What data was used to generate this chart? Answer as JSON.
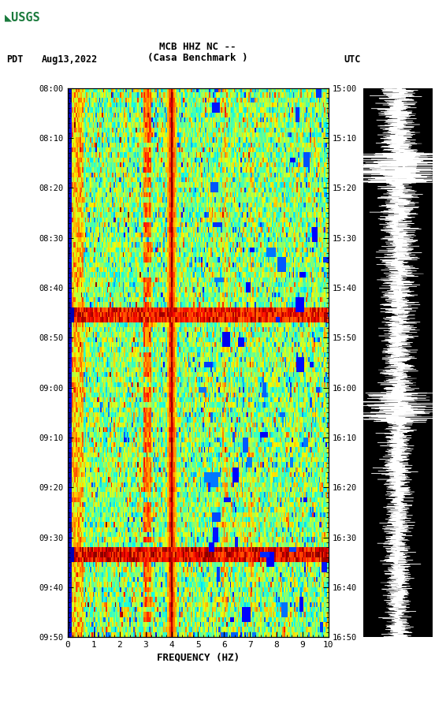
{
  "title_line1": "MCB HHZ NC --",
  "title_line2": "(Casa Benchmark )",
  "date_label": "Aug13,2022",
  "tz_left": "PDT",
  "tz_right": "UTC",
  "freq_min": 0,
  "freq_max": 10,
  "ytick_labels_pdt": [
    "08:00",
    "08:10",
    "08:20",
    "08:30",
    "08:40",
    "08:50",
    "09:00",
    "09:10",
    "09:20",
    "09:30",
    "09:40",
    "09:50"
  ],
  "ytick_labels_utc": [
    "15:00",
    "15:10",
    "15:20",
    "15:30",
    "15:40",
    "15:50",
    "16:00",
    "16:10",
    "16:20",
    "16:30",
    "16:40",
    "16:50"
  ],
  "xlabel": "FREQUENCY (HZ)",
  "background_color": "#ffffff",
  "spectrogram_cmap": "jet",
  "noise_seed": 42,
  "n_time": 110,
  "n_freq": 200,
  "usgs_green": "#1a7a3c",
  "fig_width": 5.52,
  "fig_height": 8.93
}
